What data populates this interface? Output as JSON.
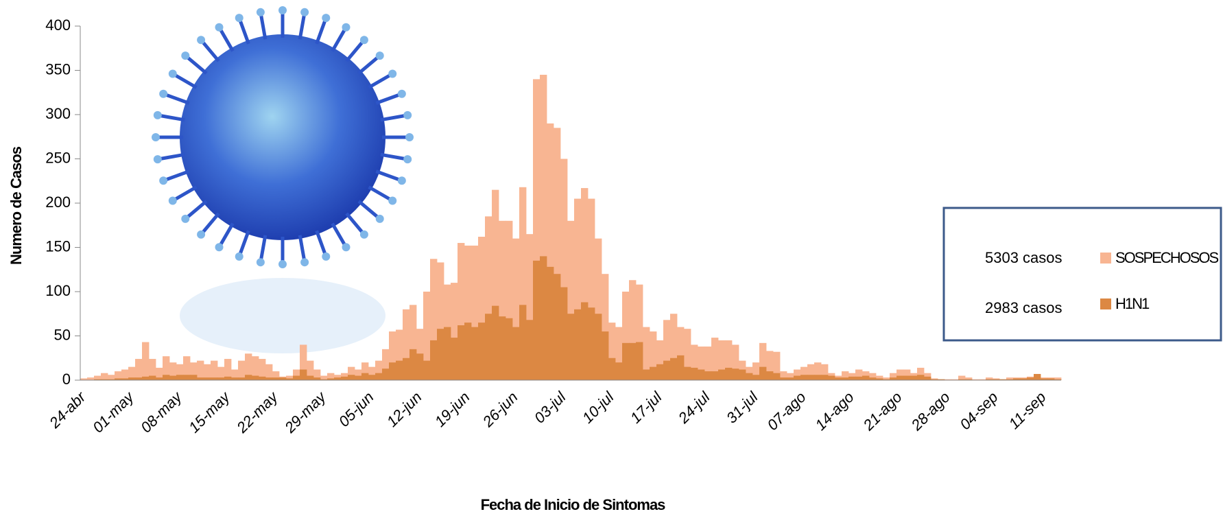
{
  "chart_data": {
    "type": "bar",
    "x_label": "Fecha de Inicio de Sintomas",
    "y_label": "Numero de Casos",
    "categories": [
      "24-abr",
      null,
      null,
      null,
      null,
      null,
      null,
      "01-may",
      null,
      null,
      null,
      null,
      null,
      null,
      "08-may",
      null,
      null,
      null,
      null,
      null,
      null,
      "15-may",
      null,
      null,
      null,
      null,
      null,
      null,
      "22-may",
      null,
      null,
      null,
      null,
      null,
      null,
      "29-may",
      null,
      null,
      null,
      null,
      null,
      null,
      "05-jun",
      null,
      null,
      null,
      null,
      null,
      null,
      "12-jun",
      null,
      null,
      null,
      null,
      null,
      null,
      "19-jun",
      null,
      null,
      null,
      null,
      null,
      null,
      "26-jun",
      null,
      null,
      null,
      null,
      null,
      null,
      "03-jul",
      null,
      null,
      null,
      null,
      null,
      null,
      "10-jul",
      null,
      null,
      null,
      null,
      null,
      null,
      "17-jul",
      null,
      null,
      null,
      null,
      null,
      null,
      "24-jul",
      null,
      null,
      null,
      null,
      null,
      null,
      "31-jul",
      null,
      null,
      null,
      null,
      null,
      null,
      "07-ago",
      null,
      null,
      null,
      null,
      null,
      null,
      "14-ago",
      null,
      null,
      null,
      null,
      null,
      null,
      "21-ago",
      null,
      null,
      null,
      null,
      null,
      null,
      "28-ago",
      null,
      null,
      null,
      null,
      null,
      null,
      "04-sep",
      null,
      null,
      null,
      null,
      null,
      null,
      "11-sep",
      null,
      null
    ],
    "series": [
      {
        "name": "SOSPECHOSOS",
        "total": "5303 casos",
        "color": "#f8b592",
        "values": [
          2,
          3,
          5,
          8,
          6,
          10,
          12,
          15,
          24,
          43,
          24,
          14,
          27,
          20,
          18,
          27,
          20,
          22,
          18,
          22,
          15,
          24,
          12,
          22,
          30,
          27,
          24,
          18,
          10,
          4,
          5,
          12,
          40,
          22,
          12,
          5,
          8,
          6,
          8,
          15,
          12,
          20,
          15,
          22,
          35,
          55,
          57,
          80,
          85,
          58,
          100,
          137,
          133,
          108,
          110,
          155,
          152,
          152,
          162,
          185,
          215,
          180,
          180,
          160,
          218,
          165,
          340,
          345,
          290,
          285,
          250,
          180,
          205,
          217,
          205,
          160,
          120,
          65,
          60,
          100,
          113,
          108,
          60,
          55,
          45,
          68,
          75,
          60,
          58,
          40,
          38,
          38,
          48,
          45,
          45,
          40,
          22,
          15,
          20,
          42,
          33,
          32,
          10,
          8,
          12,
          15,
          18,
          20,
          18,
          8,
          5,
          10,
          8,
          12,
          10,
          8,
          5,
          3,
          8,
          12,
          12,
          8,
          14,
          8,
          2,
          1,
          1,
          1,
          5,
          3,
          1,
          1,
          3,
          2,
          1,
          3,
          3,
          3,
          4,
          5,
          3,
          3,
          3
        ]
      },
      {
        "name": "H1N1",
        "total": "2983 casos",
        "color": "#dc8843",
        "values": [
          0,
          0,
          1,
          1,
          1,
          2,
          2,
          3,
          3,
          4,
          5,
          3,
          6,
          5,
          6,
          6,
          6,
          3,
          3,
          3,
          3,
          4,
          3,
          3,
          6,
          5,
          4,
          3,
          3,
          3,
          2,
          5,
          12,
          5,
          3,
          1,
          2,
          3,
          4,
          6,
          5,
          8,
          6,
          8,
          13,
          20,
          22,
          25,
          35,
          30,
          22,
          45,
          58,
          60,
          48,
          62,
          65,
          60,
          65,
          75,
          84,
          72,
          70,
          60,
          85,
          68,
          135,
          140,
          128,
          120,
          105,
          75,
          80,
          88,
          82,
          75,
          55,
          25,
          20,
          42,
          42,
          43,
          12,
          15,
          18,
          22,
          25,
          28,
          15,
          14,
          12,
          10,
          10,
          12,
          14,
          13,
          12,
          8,
          6,
          15,
          10,
          8,
          3,
          3,
          5,
          6,
          6,
          6,
          6,
          5,
          3,
          3,
          4,
          4,
          5,
          3,
          2,
          1,
          3,
          5,
          5,
          5,
          6,
          4,
          1,
          1,
          0,
          0,
          1,
          1,
          0,
          0,
          1,
          1,
          1,
          1,
          2,
          2,
          3,
          7,
          2,
          2,
          1
        ]
      }
    ],
    "ylim": [
      0,
      400
    ],
    "yticks": [
      0,
      50,
      100,
      150,
      200,
      250,
      300,
      350,
      400
    ],
    "overlap": true
  }
}
